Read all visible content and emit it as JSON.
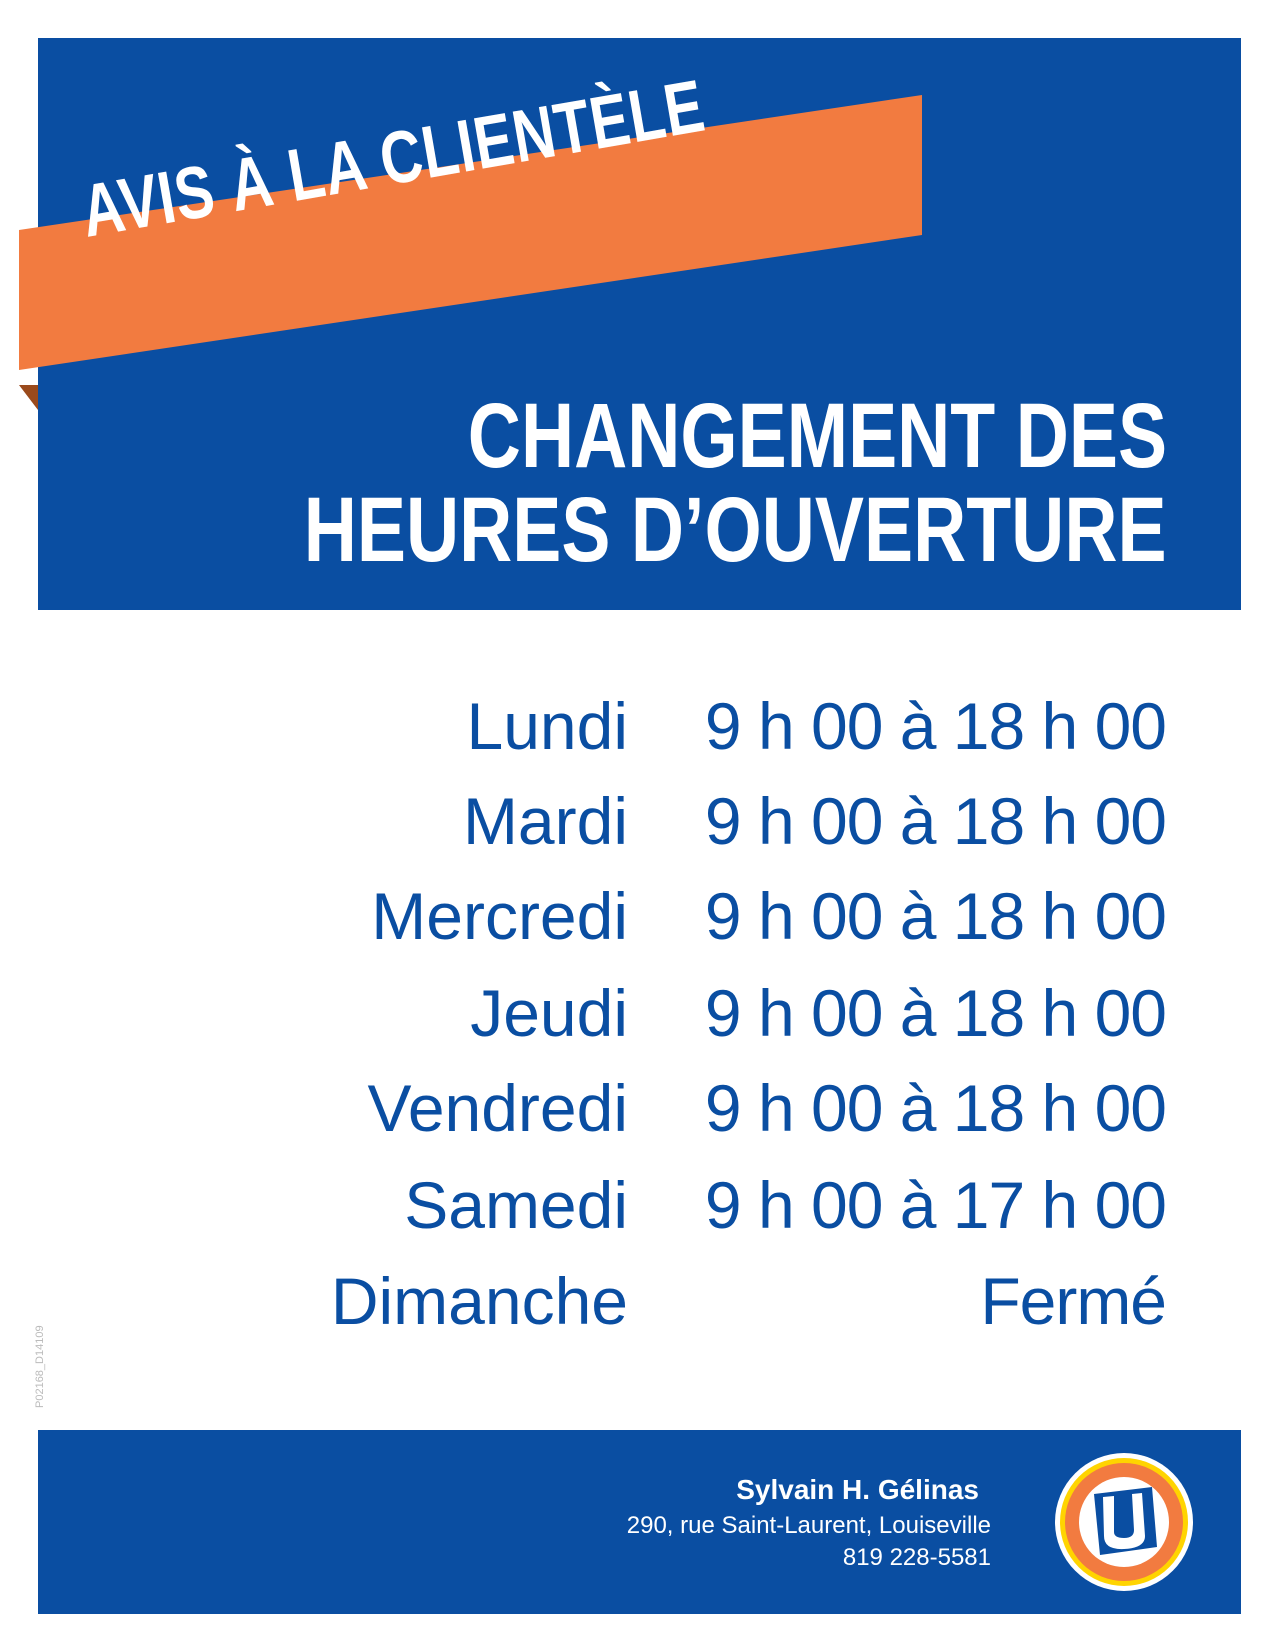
{
  "header": {
    "banner": "AVIS À LA CLIENTÈLE",
    "title_line1": "CHANGEMENT DES",
    "title_line2": "HEURES D’OUVERTURE"
  },
  "hours": [
    {
      "day": "Lundi",
      "time": "9 h 00 à 18 h 00"
    },
    {
      "day": "Mardi",
      "time": "9 h 00 à 18 h 00"
    },
    {
      "day": "Mercredi",
      "time": "9 h 00 à 18 h 00"
    },
    {
      "day": "Jeudi",
      "time": "9 h 00 à 18 h 00"
    },
    {
      "day": "Vendredi",
      "time": "9 h 00 à 18 h 00"
    },
    {
      "day": "Samedi",
      "time": "9 h 00 à 17 h 00"
    },
    {
      "day": "Dimanche",
      "time": "Fermé"
    }
  ],
  "doc_code": "P02168_D14109",
  "footer": {
    "name": "Sylvain H. Gélinas",
    "address": "290, rue Saint-Laurent, Louiseville",
    "phone": "819 228-5581",
    "logo_letter": "U"
  },
  "colors": {
    "brand_blue": "#0a4ea2",
    "banner_orange": "#f27b40",
    "logo_yellow": "#ffd400"
  }
}
